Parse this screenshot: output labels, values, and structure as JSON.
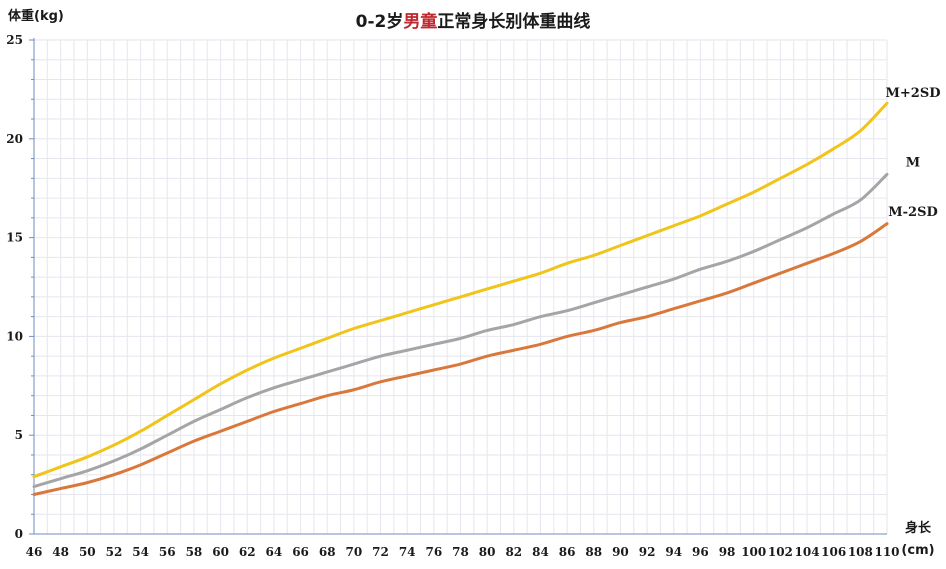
{
  "chart_data": {
    "type": "line",
    "title_parts": [
      "0-2岁",
      "男童",
      "正常身长别体重曲线"
    ],
    "title_highlight_color": "#c0272d",
    "ylabel": "体重(kg)",
    "xlabel_line1": "身长",
    "xlabel_line2": "(cm)",
    "xlim": [
      46,
      110
    ],
    "ylim": [
      0,
      25
    ],
    "x_ticks": [
      46,
      48,
      50,
      52,
      54,
      56,
      58,
      60,
      62,
      64,
      66,
      68,
      70,
      72,
      74,
      76,
      78,
      80,
      82,
      84,
      86,
      88,
      90,
      92,
      94,
      96,
      98,
      100,
      102,
      104,
      106,
      108,
      110
    ],
    "y_ticks": [
      0,
      5,
      10,
      15,
      20,
      25
    ],
    "grid": true,
    "grid_color": "#e6e6ee",
    "axis_color": "#6c8ec0",
    "x": [
      46,
      48,
      50,
      52,
      54,
      56,
      58,
      60,
      62,
      64,
      66,
      68,
      70,
      72,
      74,
      76,
      78,
      80,
      82,
      84,
      86,
      88,
      90,
      92,
      94,
      96,
      98,
      100,
      102,
      104,
      106,
      108,
      110
    ],
    "series": [
      {
        "name": "M+2SD",
        "color": "#f0c419",
        "values": [
          2.9,
          3.4,
          3.9,
          4.5,
          5.2,
          6.0,
          6.8,
          7.6,
          8.3,
          8.9,
          9.4,
          9.9,
          10.4,
          10.8,
          11.2,
          11.6,
          12.0,
          12.4,
          12.8,
          13.2,
          13.7,
          14.1,
          14.6,
          15.1,
          15.6,
          16.1,
          16.7,
          17.3,
          18.0,
          18.7,
          19.5,
          20.4,
          21.8
        ]
      },
      {
        "name": "M",
        "color": "#a5a5a5",
        "values": [
          2.4,
          2.8,
          3.2,
          3.7,
          4.3,
          5.0,
          5.7,
          6.3,
          6.9,
          7.4,
          7.8,
          8.2,
          8.6,
          9.0,
          9.3,
          9.6,
          9.9,
          10.3,
          10.6,
          11.0,
          11.3,
          11.7,
          12.1,
          12.5,
          12.9,
          13.4,
          13.8,
          14.3,
          14.9,
          15.5,
          16.2,
          16.9,
          18.2
        ]
      },
      {
        "name": "M-2SD",
        "color": "#d9783b",
        "values": [
          2.0,
          2.3,
          2.6,
          3.0,
          3.5,
          4.1,
          4.7,
          5.2,
          5.7,
          6.2,
          6.6,
          7.0,
          7.3,
          7.7,
          8.0,
          8.3,
          8.6,
          9.0,
          9.3,
          9.6,
          10.0,
          10.3,
          10.7,
          11.0,
          11.4,
          11.8,
          12.2,
          12.7,
          13.2,
          13.7,
          14.2,
          14.8,
          15.7
        ]
      }
    ]
  }
}
